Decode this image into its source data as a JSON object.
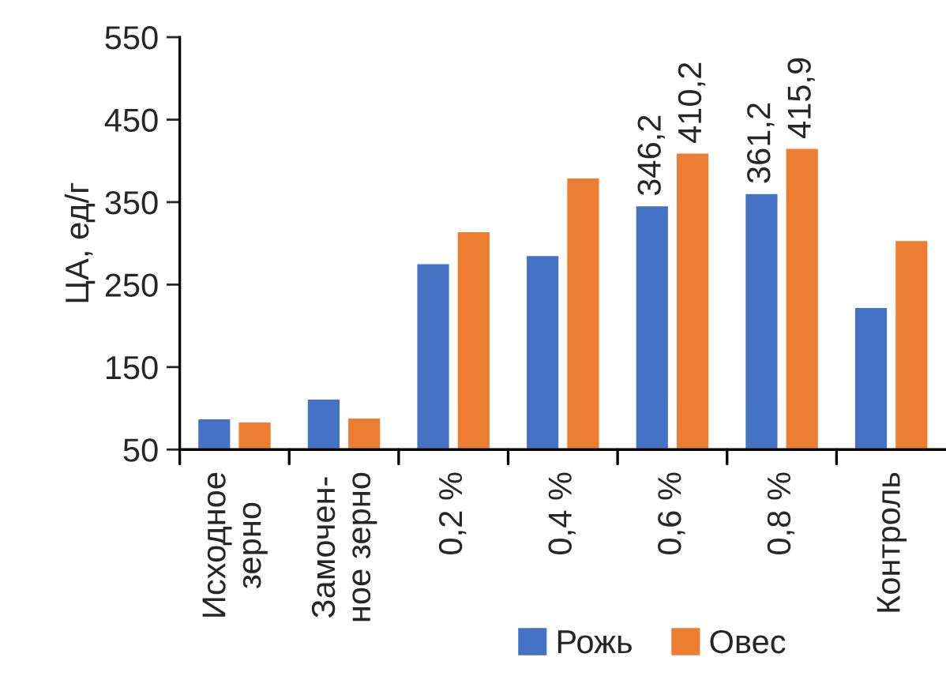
{
  "chart_data": {
    "type": "bar",
    "ylabel": "ЦА, ед/г",
    "categories": [
      "Исходное\nзерно",
      "Замочен-\nное зерно",
      "0,2 %",
      "0,4 %",
      "0,6 %",
      "0,8 %",
      "Контроль"
    ],
    "series": [
      {
        "name": "Рожь",
        "color": "#4472c4",
        "values": [
          88,
          112,
          276,
          286,
          346.2,
          361.2,
          223
        ],
        "value_labels": [
          null,
          null,
          null,
          null,
          "346,2",
          "361,2",
          null
        ]
      },
      {
        "name": "Овес",
        "color": "#ed7d31",
        "values": [
          84,
          89,
          315,
          380,
          410.2,
          415.9,
          304
        ],
        "value_labels": [
          null,
          null,
          null,
          null,
          "410,2",
          "415,9",
          null
        ]
      }
    ],
    "ylim": [
      50,
      550
    ],
    "yticks": [
      50,
      150,
      250,
      350,
      450,
      550
    ],
    "grid": false,
    "legend": "bottom"
  }
}
